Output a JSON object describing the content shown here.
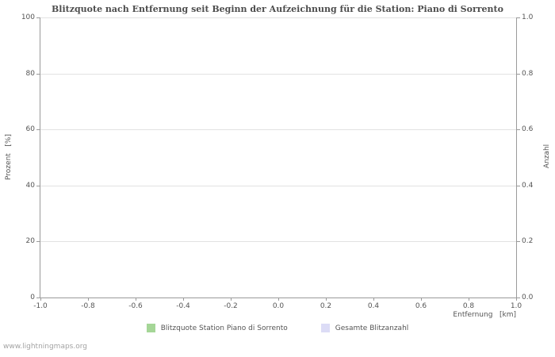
{
  "watermark": "www.lightningmaps.org",
  "chart_data": {
    "type": "bar",
    "title": "Blitzquote nach Entfernung seit Beginn der Aufzeichnung für die Station: Piano di Sorrento",
    "x_axis": {
      "label": "Entfernung   [km]",
      "min": -1.0,
      "max": 1.0,
      "tick_labels": [
        "-1.0",
        "-0.8",
        "-0.6",
        "-0.4",
        "-0.2",
        "0.0",
        "0.2",
        "0.4",
        "0.6",
        "0.8",
        "1.0"
      ]
    },
    "y_axis_left": {
      "label": "Prozent   [%]",
      "min": 0,
      "max": 100,
      "tick_labels": [
        "0",
        "20",
        "40",
        "60",
        "80",
        "100"
      ]
    },
    "y_axis_right": {
      "label": "Anzahl",
      "min": 0.0,
      "max": 1.0,
      "tick_labels": [
        "0.0",
        "0.2",
        "0.4",
        "0.6",
        "0.8",
        "1.0"
      ]
    },
    "grid": "horizontal-only",
    "legend_position": "bottom-center",
    "series": [
      {
        "name": "Blitzquote Station Piano di Sorrento",
        "color": "#a5d697",
        "values": []
      },
      {
        "name": "Gesamte Blitzanzahl",
        "color": "#dcdcf6",
        "values": []
      }
    ]
  }
}
